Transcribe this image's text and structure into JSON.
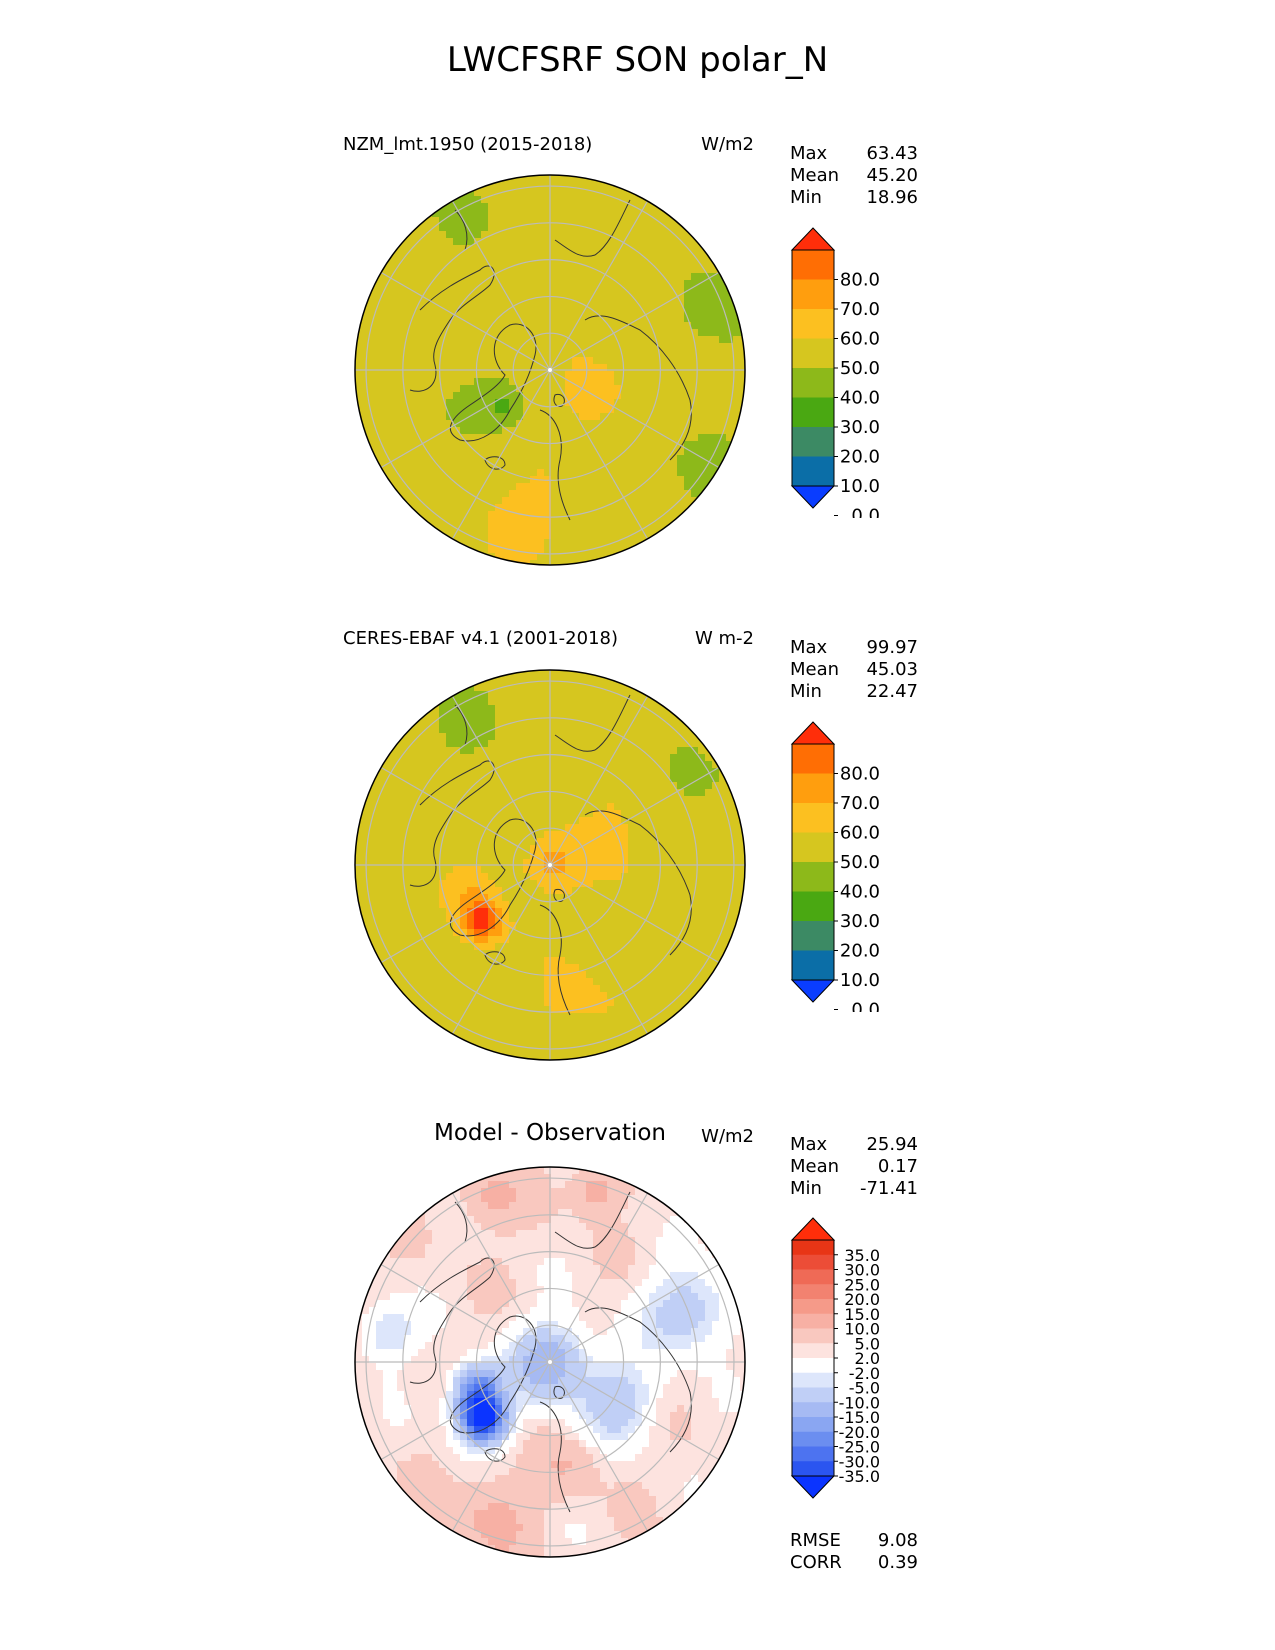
{
  "figure_title": "LWCFSRF SON polar_N",
  "colors": {
    "land_outline": "#333333",
    "grid": "#bbbbbb",
    "abs_levels": [
      "#0a3dff",
      "#0b6ea7",
      "#3c8a64",
      "#4aa812",
      "#8db91a",
      "#d6c61f",
      "#fcc020",
      "#ff9e0e",
      "#ff6e04",
      "#ff2e0a"
    ],
    "diff_levels": [
      "#0b34ff",
      "#2b55f0",
      "#4d73f0",
      "#6b8ef0",
      "#8aa6f2",
      "#a6baf3",
      "#c0cff6",
      "#dde6fb",
      "#ffffff",
      "#fde3df",
      "#f9c8bf",
      "#f7b0a4",
      "#f59a89",
      "#f28270",
      "#ef6a56",
      "#ec4d37",
      "#e83516",
      "#ff2e0a"
    ]
  },
  "chart_data": [
    {
      "type": "heatmap",
      "projection": "north-polar-stereographic",
      "title": "NZM_lmt.1950 (2015-2018)",
      "units": "W/m2",
      "stats": [
        {
          "label": "Max",
          "value": "63.43"
        },
        {
          "label": "Mean",
          "value": "45.20"
        },
        {
          "label": "Min",
          "value": "18.96"
        }
      ],
      "colorbar": {
        "levels": [
          0,
          10,
          20,
          30,
          40,
          50,
          60,
          70,
          80
        ],
        "tick_labels": [
          "80.0",
          "70.0",
          "60.0",
          "50.0",
          "40.0",
          "30.0",
          "20.0",
          "10.0",
          "0.0"
        ],
        "extend": "both"
      },
      "field": {
        "background": 47,
        "blobs": [
          {
            "r": 0.45,
            "theta": 205,
            "rad": 0.18,
            "value": 33
          },
          {
            "r": 0.3,
            "theta": 220,
            "rad": 0.1,
            "value": 35
          },
          {
            "r": 0.92,
            "theta": 120,
            "rad": 0.22,
            "value": 38
          },
          {
            "r": 0.92,
            "theta": 20,
            "rad": 0.22,
            "value": 32
          },
          {
            "r": 0.92,
            "theta": 330,
            "rad": 0.18,
            "value": 34
          },
          {
            "r": 0.8,
            "theta": 170,
            "rad": 0.15,
            "value": 40
          },
          {
            "r": 0.25,
            "theta": 330,
            "rad": 0.12,
            "value": 58
          },
          {
            "r": 0.55,
            "theta": 45,
            "rad": 0.22,
            "value": 42
          },
          {
            "r": 0.78,
            "theta": 260,
            "rad": 0.18,
            "value": 55
          }
        ]
      }
    },
    {
      "type": "heatmap",
      "projection": "north-polar-stereographic",
      "title": "CERES-EBAF v4.1 (2001-2018)",
      "units": "W m-2",
      "stats": [
        {
          "label": "Max",
          "value": "99.97"
        },
        {
          "label": "Mean",
          "value": "45.03"
        },
        {
          "label": "Min",
          "value": "22.47"
        }
      ],
      "colorbar": {
        "levels": [
          0,
          10,
          20,
          30,
          40,
          50,
          60,
          70,
          80
        ],
        "tick_labels": [
          "80.0",
          "70.0",
          "60.0",
          "50.0",
          "40.0",
          "30.0",
          "20.0",
          "10.0",
          "0.0"
        ],
        "extend": "both"
      },
      "field": {
        "background": 46,
        "blobs": [
          {
            "r": 0.0,
            "theta": 0,
            "rad": 0.12,
            "value": 63
          },
          {
            "r": 0.45,
            "theta": 220,
            "rad": 0.1,
            "value": 85
          },
          {
            "r": 0.42,
            "theta": 200,
            "rad": 0.12,
            "value": 58
          },
          {
            "r": 0.85,
            "theta": 120,
            "rad": 0.25,
            "value": 38
          },
          {
            "r": 0.85,
            "theta": 30,
            "rad": 0.2,
            "value": 37
          },
          {
            "r": 0.4,
            "theta": 20,
            "rad": 0.3,
            "value": 52
          },
          {
            "r": 0.7,
            "theta": 280,
            "rad": 0.2,
            "value": 53
          },
          {
            "r": 0.85,
            "theta": 200,
            "rad": 0.18,
            "value": 52
          }
        ]
      }
    },
    {
      "type": "heatmap",
      "projection": "north-polar-stereographic",
      "title": "Model - Observation",
      "units": "W/m2",
      "stats": [
        {
          "label": "Max",
          "value": "25.94"
        },
        {
          "label": "Mean",
          "value": "0.17"
        },
        {
          "label": "Min",
          "value": "-71.41"
        }
      ],
      "metrics": [
        {
          "label": "RMSE",
          "value": "9.08"
        },
        {
          "label": "CORR",
          "value": "0.39"
        }
      ],
      "colorbar": {
        "levels": [
          -35,
          -30,
          -25,
          -20,
          -15,
          -10,
          -5,
          -2,
          2,
          5,
          10,
          15,
          20,
          25,
          30,
          35
        ],
        "tick_labels": [
          "35.0",
          "30.0",
          "25.0",
          "20.0",
          "15.0",
          "10.0",
          "5.0",
          "2.0",
          "-2.0",
          "-5.0",
          "-10.0",
          "-15.0",
          "-20.0",
          "-25.0",
          "-30.0",
          "-35.0"
        ],
        "extend": "both"
      },
      "field": {
        "background": 4,
        "blobs": [
          {
            "r": 0.0,
            "theta": 0,
            "rad": 0.2,
            "value": -14
          },
          {
            "r": 0.45,
            "theta": 220,
            "rad": 0.12,
            "value": -40
          },
          {
            "r": 0.4,
            "theta": 200,
            "rad": 0.12,
            "value": -22
          },
          {
            "r": 0.4,
            "theta": 330,
            "rad": 0.2,
            "value": -8
          },
          {
            "r": 0.75,
            "theta": 20,
            "rad": 0.22,
            "value": -9
          },
          {
            "r": 0.9,
            "theta": 110,
            "rad": 0.15,
            "value": 12
          },
          {
            "r": 0.92,
            "theta": 75,
            "rad": 0.12,
            "value": 14
          },
          {
            "r": 0.85,
            "theta": 250,
            "rad": 0.22,
            "value": 11
          },
          {
            "r": 0.55,
            "theta": 280,
            "rad": 0.15,
            "value": 9
          },
          {
            "r": 0.85,
            "theta": 170,
            "rad": 0.15,
            "value": -6
          }
        ]
      }
    }
  ]
}
